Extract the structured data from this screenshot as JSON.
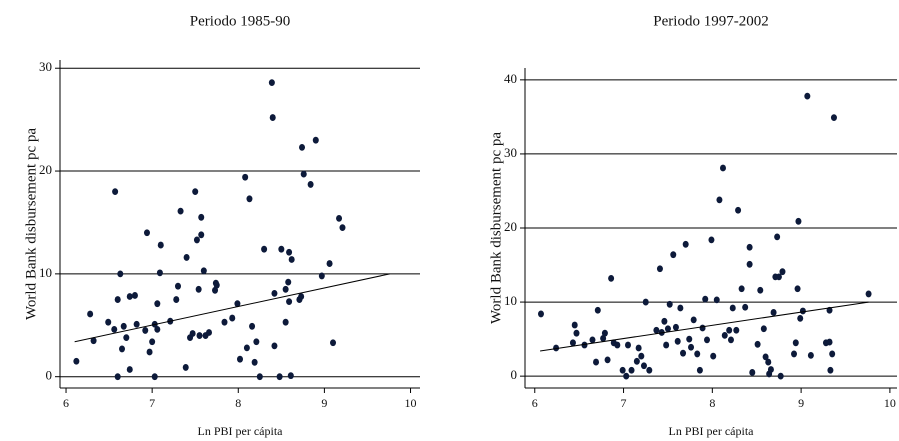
{
  "chart_data": [
    {
      "type": "scatter",
      "title": "Periodo 1985-90",
      "x_label": "Ln PBI per cápita",
      "y_label": "World Bank disbursement pc pa",
      "color": "#0d1a3a",
      "grid": true,
      "xlim": [
        5.93,
        10.11
      ],
      "ylim": [
        -1.1,
        30.8
      ],
      "xticks": [
        6,
        7,
        8,
        9,
        10
      ],
      "yticks": [
        0,
        10,
        20,
        30
      ],
      "x": [
        6.12,
        6.28,
        6.32,
        6.49,
        6.56,
        6.57,
        6.6,
        6.63,
        6.65,
        6.6,
        6.67,
        6.7,
        6.74,
        6.74,
        6.8,
        6.82,
        6.92,
        6.94,
        6.97,
        7.0,
        7.03,
        7.03,
        7.06,
        7.06,
        7.09,
        7.1,
        7.21,
        7.28,
        7.3,
        7.33,
        7.39,
        7.4,
        7.44,
        7.47,
        7.5,
        7.52,
        7.54,
        7.55,
        7.57,
        7.57,
        7.6,
        7.62,
        7.66,
        7.73,
        7.74,
        7.75,
        7.84,
        7.93,
        7.99,
        8.02,
        8.08,
        8.1,
        8.13,
        8.16,
        8.19,
        8.21,
        8.25,
        8.3,
        8.39,
        8.4,
        8.42,
        8.42,
        8.48,
        8.5,
        8.55,
        8.55,
        8.58,
        8.59,
        8.61,
        8.59,
        8.62,
        8.71,
        8.73,
        8.74,
        8.76,
        8.84,
        8.9,
        8.97,
        9.06,
        9.1,
        9.17,
        9.21
      ],
      "values": [
        1.5,
        6.1,
        3.5,
        5.3,
        4.6,
        18,
        7.5,
        10,
        2.7,
        0,
        4.9,
        3.8,
        7.8,
        0.7,
        7.9,
        5.1,
        4.5,
        14,
        2.4,
        3.4,
        5.1,
        0,
        4.6,
        7.1,
        10.1,
        12.8,
        5.4,
        7.5,
        8.8,
        16.1,
        0.9,
        11.6,
        3.8,
        4.2,
        18,
        13.3,
        8.5,
        4,
        13.8,
        15.5,
        10.3,
        4,
        4.3,
        8.4,
        9.1,
        8.9,
        5.3,
        5.7,
        7.1,
        1.7,
        19.4,
        2.8,
        17.3,
        4.9,
        1.4,
        3.4,
        0,
        12.4,
        28.6,
        25.2,
        3,
        8.1,
        0,
        12.4,
        8.5,
        5.3,
        9.2,
        12.1,
        0.1,
        7.3,
        11.4,
        7.5,
        7.8,
        22.3,
        19.7,
        18.7,
        23,
        9.8,
        11,
        3.3,
        15.4,
        14.5
      ],
      "fit_line": {
        "x": [
          6.1,
          9.76
        ],
        "values": [
          3.4,
          10.0
        ]
      }
    },
    {
      "type": "scatter",
      "title": "Periodo 1997-2002",
      "x_label": "Ln PBI per cápita",
      "y_label": "World Bank disbursement pc pa",
      "color": "#0d1a3a",
      "grid": true,
      "xlim": [
        5.89,
        10.08
      ],
      "ylim": [
        -1.6,
        41.6
      ],
      "xticks": [
        6,
        7,
        8,
        9,
        10
      ],
      "yticks": [
        0,
        10,
        20,
        30,
        40
      ],
      "x": [
        6.07,
        6.24,
        6.43,
        6.45,
        6.47,
        6.56,
        6.65,
        6.69,
        6.71,
        6.77,
        6.79,
        6.82,
        6.86,
        6.89,
        6.93,
        6.99,
        7.03,
        7.05,
        7.09,
        7.15,
        7.17,
        7.2,
        7.23,
        7.25,
        7.29,
        7.37,
        7.41,
        7.43,
        7.46,
        7.48,
        7.5,
        7.52,
        7.56,
        7.59,
        7.61,
        7.64,
        7.67,
        7.7,
        7.74,
        7.76,
        7.79,
        7.83,
        7.86,
        7.89,
        7.92,
        7.94,
        7.99,
        8.01,
        8.05,
        8.08,
        8.12,
        8.14,
        8.19,
        8.21,
        8.23,
        8.27,
        8.29,
        8.33,
        8.37,
        8.42,
        8.42,
        8.45,
        8.51,
        8.54,
        8.58,
        8.6,
        8.63,
        8.64,
        8.66,
        8.69,
        8.71,
        8.73,
        8.75,
        8.77,
        8.79,
        8.92,
        8.94,
        8.96,
        8.97,
        8.99,
        9.02,
        9.07,
        9.11,
        9.28,
        9.32,
        9.32,
        9.35,
        9.37,
        9.33,
        9.76
      ],
      "values": [
        8.4,
        3.8,
        4.5,
        6.9,
        5.8,
        4.2,
        4.9,
        1.9,
        8.9,
        5.1,
        5.8,
        2.2,
        13.2,
        4.5,
        4.2,
        0.8,
        0,
        4.2,
        0.8,
        2,
        3.8,
        2.7,
        1.4,
        10,
        0.8,
        6.2,
        14.5,
        5.9,
        7.4,
        4.2,
        6.4,
        9.7,
        16.4,
        6.6,
        4.7,
        9.2,
        3.1,
        17.8,
        5,
        3.9,
        7.6,
        3,
        0.8,
        6.5,
        10.4,
        4.9,
        18.4,
        2.7,
        10.3,
        23.8,
        28.1,
        5.5,
        6.2,
        4.9,
        9.2,
        6.2,
        22.4,
        11.8,
        9.3,
        15.1,
        17.4,
        0.5,
        4.3,
        11.6,
        6.4,
        2.6,
        1.9,
        0.3,
        0.9,
        8.6,
        13.4,
        18.8,
        13.4,
        0,
        14.1,
        3,
        4.5,
        11.8,
        20.9,
        7.8,
        8.8,
        37.8,
        2.8,
        4.5,
        4.6,
        8.9,
        3,
        34.9,
        0.8,
        11.1
      ],
      "fit_line": {
        "x": [
          6.06,
          9.76
        ],
        "values": [
          3.4,
          10.0
        ]
      }
    }
  ]
}
